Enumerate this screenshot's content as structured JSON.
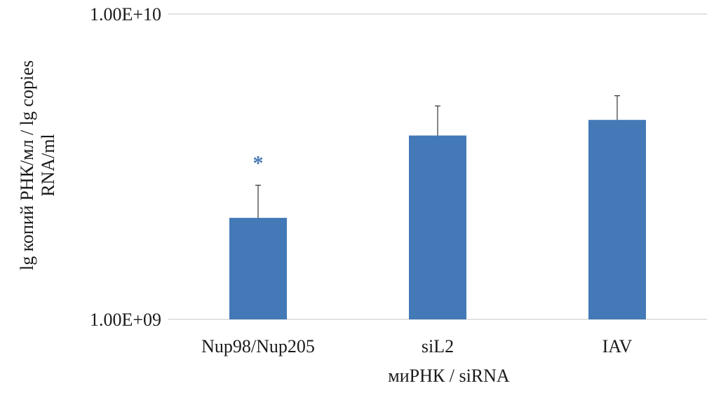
{
  "chart_data": {
    "type": "bar",
    "title": "",
    "xlabel": "миРНК / siRNA",
    "ylabel_lines": [
      "lg копий РНК/мл  / lg copies",
      "RNA/ml"
    ],
    "y_scale": "log",
    "ylim": [
      1000000000,
      10000000000
    ],
    "y_ticks": [
      1000000000,
      10000000000
    ],
    "y_tick_labels": [
      "1.00E+09",
      "1.00E+10"
    ],
    "grid": true,
    "legend": "none",
    "bar_color": "#4379b6",
    "categories": [
      "Nup98/Nup205",
      "siL2",
      "IAV"
    ],
    "values": [
      2150000000,
      4000000000,
      4500000000
    ],
    "error_low": [
      1550000000,
      3150000000,
      3700000000
    ],
    "error_high": [
      2750000000,
      5000000000,
      5400000000
    ],
    "annotations": [
      {
        "category": "Nup98/Nup205",
        "text": "*",
        "color": "#4a7ab5"
      }
    ]
  }
}
